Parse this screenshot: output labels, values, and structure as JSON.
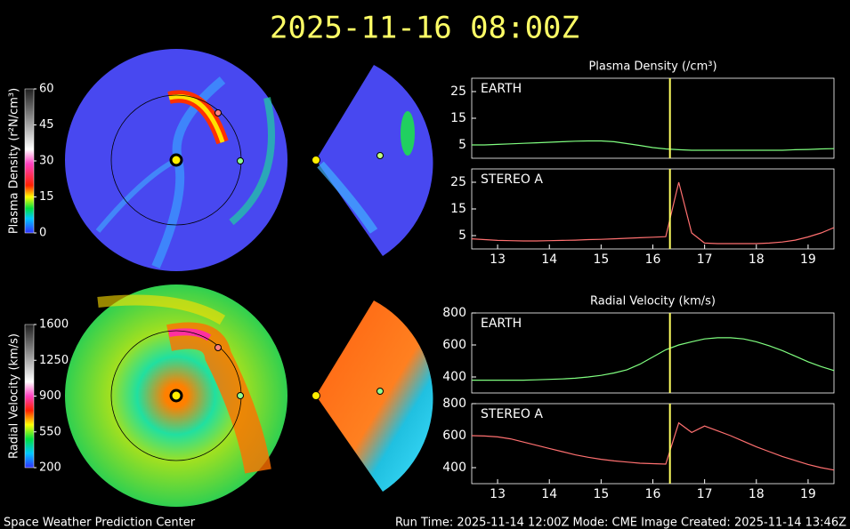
{
  "title": "2025-11-16  08:00Z",
  "footer": {
    "left": "Space Weather Prediction Center",
    "center": "Run Time: 2025-11-14 12:00Z  Mode: CME",
    "right": "Image Created: 2025-11-14 13:46Z"
  },
  "chart_data": [
    {
      "type": "colorbar",
      "label": "Plasma Density (r²N/cm³)",
      "ylim": [
        0,
        60
      ],
      "yticks": [
        0,
        15,
        30,
        45,
        60
      ]
    },
    {
      "type": "colorbar",
      "label": "Radial Velocity (km/s)",
      "ylim": [
        200,
        1600
      ],
      "yticks": [
        200,
        550,
        900,
        1250,
        1600
      ]
    },
    {
      "type": "line",
      "title": "Plasma Density (/cm³)",
      "x": [
        12.5,
        12.75,
        13,
        13.25,
        13.5,
        13.75,
        14,
        14.25,
        14.5,
        14.75,
        15,
        15.25,
        15.5,
        15.75,
        16,
        16.25,
        16.5,
        16.75,
        17,
        17.25,
        17.5,
        17.75,
        18,
        18.25,
        18.5,
        18.75,
        19,
        19.25,
        19.5
      ],
      "series": [
        {
          "name": "EARTH",
          "color": "#80ff80",
          "values": [
            5,
            5,
            5.2,
            5.4,
            5.6,
            5.8,
            6,
            6.2,
            6.4,
            6.5,
            6.5,
            6.2,
            5.5,
            4.8,
            4,
            3.5,
            3.2,
            3,
            3,
            3,
            3,
            3,
            3,
            3,
            3,
            3.2,
            3.3,
            3.5,
            3.6
          ]
        }
      ],
      "xlim": [
        12.5,
        19.5
      ],
      "ylim": [
        0,
        30
      ],
      "yticks": [
        5,
        15,
        25
      ],
      "marker_x": 16.33
    },
    {
      "type": "line",
      "x": [
        12.5,
        12.75,
        13,
        13.25,
        13.5,
        13.75,
        14,
        14.25,
        14.5,
        14.75,
        15,
        15.25,
        15.5,
        15.75,
        16,
        16.25,
        16.5,
        16.75,
        17,
        17.25,
        17.5,
        17.75,
        18,
        18.25,
        18.5,
        18.75,
        19,
        19.25,
        19.5
      ],
      "series": [
        {
          "name": "STEREO A",
          "color": "#ff7070",
          "values": [
            3.8,
            3.5,
            3.2,
            3.1,
            3,
            3,
            3.1,
            3.2,
            3.3,
            3.5,
            3.6,
            3.8,
            4,
            4.2,
            4.4,
            4.6,
            25,
            6,
            2.2,
            2,
            2,
            2,
            2,
            2.2,
            2.6,
            3.3,
            4.5,
            6,
            8
          ]
        }
      ],
      "xlim": [
        12.5,
        19.5
      ],
      "xticks": [
        13,
        14,
        15,
        16,
        17,
        18,
        19
      ],
      "ylim": [
        0,
        30
      ],
      "yticks": [
        5,
        15,
        25
      ],
      "marker_x": 16.33
    },
    {
      "type": "line",
      "title": "Radial Velocity (km/s)",
      "x": [
        12.5,
        12.75,
        13,
        13.25,
        13.5,
        13.75,
        14,
        14.25,
        14.5,
        14.75,
        15,
        15.25,
        15.5,
        15.75,
        16,
        16.25,
        16.5,
        16.75,
        17,
        17.25,
        17.5,
        17.75,
        18,
        18.25,
        18.5,
        18.75,
        19,
        19.25,
        19.5
      ],
      "series": [
        {
          "name": "EARTH",
          "color": "#80ff80",
          "values": [
            380,
            380,
            380,
            380,
            380,
            382,
            385,
            388,
            392,
            400,
            410,
            425,
            445,
            480,
            525,
            570,
            600,
            620,
            638,
            645,
            645,
            638,
            620,
            595,
            565,
            530,
            495,
            465,
            440
          ]
        }
      ],
      "xlim": [
        12.5,
        19.5
      ],
      "ylim": [
        300,
        800
      ],
      "yticks": [
        400,
        600,
        800
      ],
      "marker_x": 16.33
    },
    {
      "type": "line",
      "x": [
        12.5,
        12.75,
        13,
        13.25,
        13.5,
        13.75,
        14,
        14.25,
        14.5,
        14.75,
        15,
        15.25,
        15.5,
        15.75,
        16,
        16.25,
        16.5,
        16.75,
        17,
        17.25,
        17.5,
        17.75,
        18,
        18.25,
        18.5,
        18.75,
        19,
        19.25,
        19.5
      ],
      "series": [
        {
          "name": "STEREO A",
          "color": "#ff7070",
          "values": [
            600,
            598,
            592,
            580,
            560,
            540,
            520,
            500,
            480,
            465,
            452,
            442,
            435,
            428,
            425,
            422,
            680,
            620,
            660,
            630,
            600,
            565,
            530,
            500,
            470,
            445,
            420,
            400,
            385
          ]
        }
      ],
      "xlim": [
        12.5,
        19.5
      ],
      "xticks": [
        13,
        14,
        15,
        16,
        17,
        18,
        19
      ],
      "ylim": [
        300,
        800
      ],
      "yticks": [
        400,
        600,
        800
      ],
      "marker_x": 16.33
    }
  ]
}
